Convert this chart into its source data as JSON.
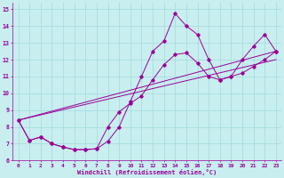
{
  "xlabel": "Windchill (Refroidissement éolien,°C)",
  "bg_color": "#c8eef0",
  "grid_color": "#aadddd",
  "line_color": "#990099",
  "xlim": [
    -0.5,
    23.5
  ],
  "ylim": [
    6,
    15.4
  ],
  "xticks": [
    0,
    1,
    2,
    3,
    4,
    5,
    6,
    7,
    8,
    9,
    10,
    11,
    12,
    13,
    14,
    15,
    16,
    17,
    18,
    19,
    20,
    21,
    22,
    23
  ],
  "yticks": [
    6,
    7,
    8,
    9,
    10,
    11,
    12,
    13,
    14,
    15
  ],
  "series1_x": [
    0,
    1,
    2,
    3,
    4,
    5,
    6,
    7,
    8,
    9,
    10,
    11,
    12,
    13,
    14,
    15,
    16,
    17,
    18,
    19,
    20,
    21,
    22,
    23
  ],
  "series1_y": [
    8.4,
    7.2,
    7.4,
    7.0,
    6.8,
    6.65,
    6.65,
    6.7,
    7.15,
    8.0,
    9.5,
    11.0,
    12.5,
    13.1,
    14.75,
    14.0,
    13.5,
    12.0,
    10.8,
    11.0,
    12.0,
    12.8,
    13.5,
    12.5
  ],
  "series2_x": [
    0,
    1,
    2,
    3,
    4,
    5,
    6,
    7,
    8,
    9,
    10,
    11,
    12,
    13,
    14,
    15,
    16,
    17,
    18,
    19,
    20,
    21,
    22,
    23
  ],
  "series2_y": [
    8.4,
    7.2,
    7.4,
    7.0,
    6.8,
    6.65,
    6.65,
    6.7,
    8.0,
    8.9,
    9.4,
    9.85,
    10.8,
    11.7,
    12.3,
    12.4,
    11.8,
    11.0,
    10.8,
    11.0,
    11.2,
    11.6,
    12.0,
    12.5
  ],
  "trend1_x": [
    0,
    23
  ],
  "trend1_y": [
    8.4,
    12.5
  ],
  "trend2_x": [
    0,
    23
  ],
  "trend2_y": [
    8.4,
    12.0
  ]
}
